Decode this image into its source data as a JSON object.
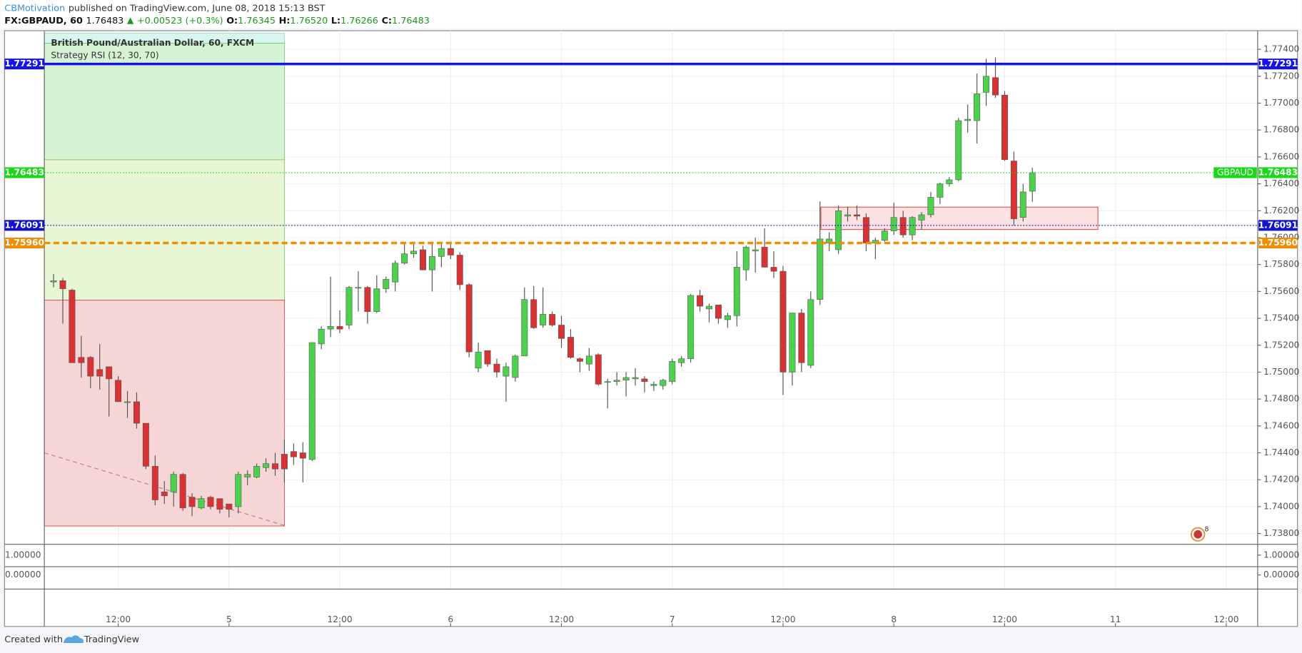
{
  "header": {
    "author": "CBMotivation",
    "published": "published on TradingView.com, June 08, 2018 15:13 BST",
    "symbol": "FX:GBPAUD, 60",
    "last": "1.76483",
    "change": "+0.00523 (+0.3%)",
    "open_label": "O:",
    "open": "1.76345",
    "high_label": "H:",
    "high": "1.76520",
    "low_label": "L:",
    "low": "1.76266",
    "close_label": "C:",
    "close": "1.76483"
  },
  "footer": {
    "created": "Created with",
    "brand": "TradingView"
  },
  "chart_data": {
    "type": "candlestick",
    "legend": [
      "British Pound/Australian Dollar, 60, FXCM",
      "Strategy RSI (12, 30, 70)"
    ],
    "up_color": "#4cd14c",
    "down_color": "#d83232",
    "x": [
      5,
      6,
      7,
      8,
      9,
      10,
      11,
      12,
      13,
      14,
      15,
      16,
      17,
      18,
      19,
      20,
      21,
      22,
      23,
      24,
      25,
      26,
      27,
      28,
      29,
      30,
      31,
      32,
      33,
      34,
      35,
      36,
      37,
      38,
      39,
      40,
      41,
      42,
      43,
      44,
      45,
      46,
      47,
      48,
      49,
      50,
      51,
      52,
      53,
      54,
      55,
      56,
      57,
      58,
      59,
      60,
      61,
      62,
      63,
      64,
      65,
      66,
      67,
      68,
      69,
      70,
      71,
      72,
      73,
      74,
      75,
      76,
      77,
      78,
      79,
      80,
      81,
      82,
      83,
      84,
      85,
      86,
      87,
      88,
      89,
      90,
      91,
      92,
      93,
      94,
      95,
      96,
      97,
      98,
      99,
      100,
      101,
      102,
      103,
      104,
      105,
      106,
      107,
      108,
      109,
      110,
      111
    ],
    "open": [
      1.7567,
      1.7568,
      1.7561,
      1.7511,
      1.7511,
      1.7502,
      1.7504,
      1.7494,
      1.7478,
      1.7478,
      1.7462,
      1.743,
      1.7411,
      1.7411,
      1.7424,
      1.7407,
      1.7399,
      1.7407,
      1.7406,
      1.7402,
      1.74,
      1.7422,
      1.7422,
      1.7429,
      1.7432,
      1.7439,
      1.7441,
      1.744,
      1.7435,
      1.7521,
      1.7532,
      1.7534,
      1.7535,
      1.7563,
      1.7563,
      1.7545,
      1.7562,
      1.7567,
      1.7581,
      1.7588,
      1.7591,
      1.7576,
      1.7586,
      1.7592,
      1.7587,
      1.7565,
      1.7503,
      1.7516,
      1.7506,
      1.7497,
      1.7496,
      1.7512,
      1.7554,
      1.7535,
      1.7543,
      1.7535,
      1.7526,
      1.751,
      1.7506,
      1.7513,
      1.7493,
      1.7493,
      1.7494,
      1.7495,
      1.7495,
      1.749,
      1.749,
      1.7493,
      1.7507,
      1.751,
      1.7557,
      1.7547,
      1.755,
      1.7539,
      1.7542,
      1.7576,
      1.759,
      1.7593,
      1.7578,
      1.7575,
      1.75,
      1.7544,
      1.7505,
      1.7554,
      1.7596,
      1.7591,
      1.7616,
      1.7617,
      1.7615,
      1.7596,
      1.7598,
      1.7605,
      1.7615,
      1.7602,
      1.7613,
      1.7617,
      1.763,
      1.764,
      1.7643,
      1.7687,
      1.7687,
      1.7708,
      1.7719,
      1.7706,
      1.7657,
      1.7615,
      1.76345
    ],
    "high": [
      1.7573,
      1.757,
      1.7562,
      1.7527,
      1.7512,
      1.7521,
      1.7504,
      1.7497,
      1.7486,
      1.7485,
      1.7462,
      1.7438,
      1.7419,
      1.7426,
      1.7425,
      1.741,
      1.7408,
      1.7408,
      1.7406,
      1.7402,
      1.7426,
      1.7427,
      1.7432,
      1.7436,
      1.744,
      1.745,
      1.7447,
      1.7448,
      1.7522,
      1.7534,
      1.7571,
      1.7546,
      1.7564,
      1.7575,
      1.7564,
      1.7572,
      1.7571,
      1.7583,
      1.7596,
      1.7597,
      1.7594,
      1.7597,
      1.7596,
      1.7597,
      1.7589,
      1.7566,
      1.7522,
      1.7516,
      1.751,
      1.7507,
      1.7513,
      1.7563,
      1.7564,
      1.7563,
      1.7545,
      1.7542,
      1.7532,
      1.7511,
      1.7518,
      1.7514,
      1.7495,
      1.75,
      1.75,
      1.7503,
      1.7497,
      1.7493,
      1.7495,
      1.751,
      1.7512,
      1.7558,
      1.7561,
      1.7551,
      1.755,
      1.7544,
      1.759,
      1.7594,
      1.76,
      1.7607,
      1.759,
      1.7579,
      1.7544,
      1.7547,
      1.756,
      1.7627,
      1.7604,
      1.7624,
      1.7623,
      1.7624,
      1.7618,
      1.76,
      1.7607,
      1.7626,
      1.762,
      1.7616,
      1.7619,
      1.7634,
      1.7641,
      1.7645,
      1.7689,
      1.7699,
      1.7722,
      1.7733,
      1.7734,
      1.7709,
      1.7664,
      1.764,
      1.7652
    ],
    "low": [
      1.7563,
      1.7536,
      1.7507,
      1.7496,
      1.7488,
      1.7487,
      1.7467,
      1.7478,
      1.7466,
      1.7458,
      1.7428,
      1.7401,
      1.7402,
      1.74,
      1.7397,
      1.7393,
      1.7398,
      1.7398,
      1.7395,
      1.7392,
      1.7395,
      1.7416,
      1.7421,
      1.7426,
      1.7423,
      1.7418,
      1.7431,
      1.7418,
      1.7434,
      1.7517,
      1.7526,
      1.7529,
      1.7532,
      1.7545,
      1.7536,
      1.7544,
      1.7559,
      1.756,
      1.758,
      1.7585,
      1.7576,
      1.756,
      1.7578,
      1.7584,
      1.7561,
      1.7511,
      1.75,
      1.7504,
      1.7496,
      1.7478,
      1.7493,
      1.7512,
      1.7532,
      1.7533,
      1.7534,
      1.7518,
      1.751,
      1.75,
      1.7501,
      1.749,
      1.7473,
      1.749,
      1.7482,
      1.749,
      1.7485,
      1.7486,
      1.7487,
      1.7491,
      1.7504,
      1.7507,
      1.7545,
      1.7537,
      1.7536,
      1.7533,
      1.7534,
      1.7568,
      1.7574,
      1.7578,
      1.757,
      1.7483,
      1.749,
      1.75,
      1.7503,
      1.755,
      1.759,
      1.7588,
      1.7612,
      1.7613,
      1.759,
      1.7584,
      1.7597,
      1.7602,
      1.76,
      1.7598,
      1.7606,
      1.7615,
      1.7625,
      1.7638,
      1.7642,
      1.7678,
      1.767,
      1.7698,
      1.7704,
      1.7657,
      1.7609,
      1.7612,
      1.76266
    ],
    "close": [
      1.7568,
      1.7562,
      1.7507,
      1.7507,
      1.7497,
      1.7497,
      1.7495,
      1.7478,
      1.7478,
      1.7462,
      1.743,
      1.7405,
      1.7408,
      1.7424,
      1.7399,
      1.74,
      1.7406,
      1.74,
      1.7398,
      1.7398,
      1.7424,
      1.7424,
      1.743,
      1.7432,
      1.7428,
      1.7428,
      1.7437,
      1.7436,
      1.7522,
      1.7532,
      1.7534,
      1.7532,
      1.7563,
      1.7563,
      1.7545,
      1.7562,
      1.7569,
      1.7581,
      1.7588,
      1.759,
      1.7576,
      1.7586,
      1.7592,
      1.7587,
      1.7565,
      1.7515,
      1.7515,
      1.7506,
      1.75,
      1.7504,
      1.7512,
      1.7554,
      1.7533,
      1.7543,
      1.7535,
      1.7525,
      1.7511,
      1.7508,
      1.7512,
      1.7491,
      1.7493,
      1.7494,
      1.7496,
      1.7496,
      1.7493,
      1.7491,
      1.7494,
      1.7508,
      1.751,
      1.7557,
      1.7549,
      1.7549,
      1.754,
      1.7542,
      1.7578,
      1.7593,
      1.7591,
      1.7578,
      1.7575,
      1.75,
      1.7544,
      1.7507,
      1.7554,
      1.7599,
      1.7599,
      1.762,
      1.7617,
      1.7616,
      1.7596,
      1.7598,
      1.7605,
      1.7615,
      1.7602,
      1.7615,
      1.7617,
      1.763,
      1.764,
      1.7643,
      1.7687,
      1.7688,
      1.7707,
      1.772,
      1.7706,
      1.7658,
      1.7614,
      1.7634,
      1.76483
    ],
    "xlim": [
      4,
      135.4
    ],
    "ylim": [
      1.7372,
      1.7752
    ],
    "xticks": [
      {
        "value": 12,
        "label": "12:00"
      },
      {
        "value": 24,
        "label": "5"
      },
      {
        "value": 36,
        "label": "12:00"
      },
      {
        "value": 48,
        "label": "6"
      },
      {
        "value": 60,
        "label": "12:00"
      },
      {
        "value": 72,
        "label": "7"
      },
      {
        "value": 84,
        "label": "12:00"
      },
      {
        "value": 96,
        "label": "8"
      },
      {
        "value": 108,
        "label": "12:00"
      },
      {
        "value": 120,
        "label": "11"
      },
      {
        "value": 132,
        "label": "12:00"
      }
    ],
    "yticks": [
      {
        "value": 1.738,
        "label": "1.73800"
      },
      {
        "value": 1.74,
        "label": "1.74000"
      },
      {
        "value": 1.742,
        "label": "1.74200"
      },
      {
        "value": 1.744,
        "label": "1.74400"
      },
      {
        "value": 1.746,
        "label": "1.74600"
      },
      {
        "value": 1.748,
        "label": "1.74800"
      },
      {
        "value": 1.75,
        "label": "1.75000"
      },
      {
        "value": 1.752,
        "label": "1.75200"
      },
      {
        "value": 1.754,
        "label": "1.75400"
      },
      {
        "value": 1.756,
        "label": "1.75600"
      },
      {
        "value": 1.758,
        "label": "1.75800"
      },
      {
        "value": 1.76,
        "label": "1.76000"
      },
      {
        "value": 1.762,
        "label": "1.76200"
      },
      {
        "value": 1.764,
        "label": "1.76400"
      },
      {
        "value": 1.766,
        "label": "1.76600"
      },
      {
        "value": 1.768,
        "label": "1.76800"
      },
      {
        "value": 1.77,
        "label": "1.77000"
      },
      {
        "value": 1.772,
        "label": "1.77200"
      },
      {
        "value": 1.774,
        "label": "1.77400"
      }
    ],
    "grid": true,
    "levels": [
      {
        "value": 1.77291,
        "color": "#1414e6",
        "style": "solid"
      },
      {
        "value": 1.76483,
        "color": "#18d818",
        "style": "dotted",
        "name": "GBPAUD"
      },
      {
        "value": 1.76091,
        "color": "#1414c8",
        "style": "dotted"
      },
      {
        "value": 1.7596,
        "label": "1.75960",
        "color": "#f28c00",
        "style": "dashed"
      }
    ],
    "zones": [
      {
        "x": [
          4,
          30
        ],
        "y": [
          1.7752,
          1.77445
        ],
        "color": "#d9f6ee",
        "edge": "#9fdcc8"
      },
      {
        "x": [
          4,
          30
        ],
        "y": [
          1.77445,
          1.76579
        ],
        "color": "#d6f3d6",
        "edge": "#6fcf6f"
      },
      {
        "x": [
          4,
          30
        ],
        "y": [
          1.76579,
          1.75535
        ],
        "color": "#e9f6d6",
        "edge": "#88cc66"
      },
      {
        "x": [
          4,
          30
        ],
        "y": [
          1.75535,
          1.73856
        ],
        "color": "#f5d5d5",
        "edge": "#d05050"
      },
      {
        "x": [
          88.1,
          118.1
        ],
        "y": [
          1.76227,
          1.7606
        ],
        "color": "#fbe1e1",
        "edge": "#e03030"
      }
    ],
    "trendlines": [
      {
        "x": [
          4,
          30
        ],
        "y": [
          1.744,
          1.7386
        ],
        "color": "#c87a7a"
      }
    ],
    "panes": [
      {
        "yticks": [
          {
            "value": 1,
            "label": "1.00000"
          }
        ]
      },
      {
        "yticks": [
          {
            "value": 0,
            "label": "0.00000"
          }
        ]
      }
    ]
  }
}
